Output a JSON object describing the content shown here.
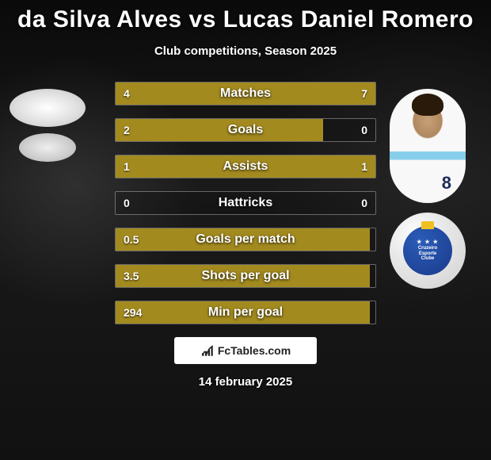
{
  "title": "da Silva Alves vs Lucas Daniel Romero",
  "subtitle": "Club competitions, Season 2025",
  "date": "14 february 2025",
  "brand": "FcTables.com",
  "colors": {
    "left_bar": "#a38a1f",
    "right_bar": "#a38a1f",
    "background": "#111111",
    "text": "#ffffff",
    "club_blue": "#1a3a8a"
  },
  "player_right": {
    "jersey_number": "8",
    "club_text_top": "Cruzeiro",
    "club_text_mid": "Esporte",
    "club_text_bot": "Clube"
  },
  "stats": [
    {
      "label": "Matches",
      "left_val": "4",
      "right_val": "7",
      "left_pct": 36,
      "right_pct": 64
    },
    {
      "label": "Goals",
      "left_val": "2",
      "right_val": "0",
      "left_pct": 80,
      "right_pct": 0
    },
    {
      "label": "Assists",
      "left_val": "1",
      "right_val": "1",
      "left_pct": 50,
      "right_pct": 50
    },
    {
      "label": "Hattricks",
      "left_val": "0",
      "right_val": "0",
      "left_pct": 0,
      "right_pct": 0
    },
    {
      "label": "Goals per match",
      "left_val": "0.5",
      "right_val": "",
      "left_pct": 98,
      "right_pct": 0
    },
    {
      "label": "Shots per goal",
      "left_val": "3.5",
      "right_val": "",
      "left_pct": 98,
      "right_pct": 0
    },
    {
      "label": "Min per goal",
      "left_val": "294",
      "right_val": "",
      "left_pct": 98,
      "right_pct": 0
    }
  ]
}
